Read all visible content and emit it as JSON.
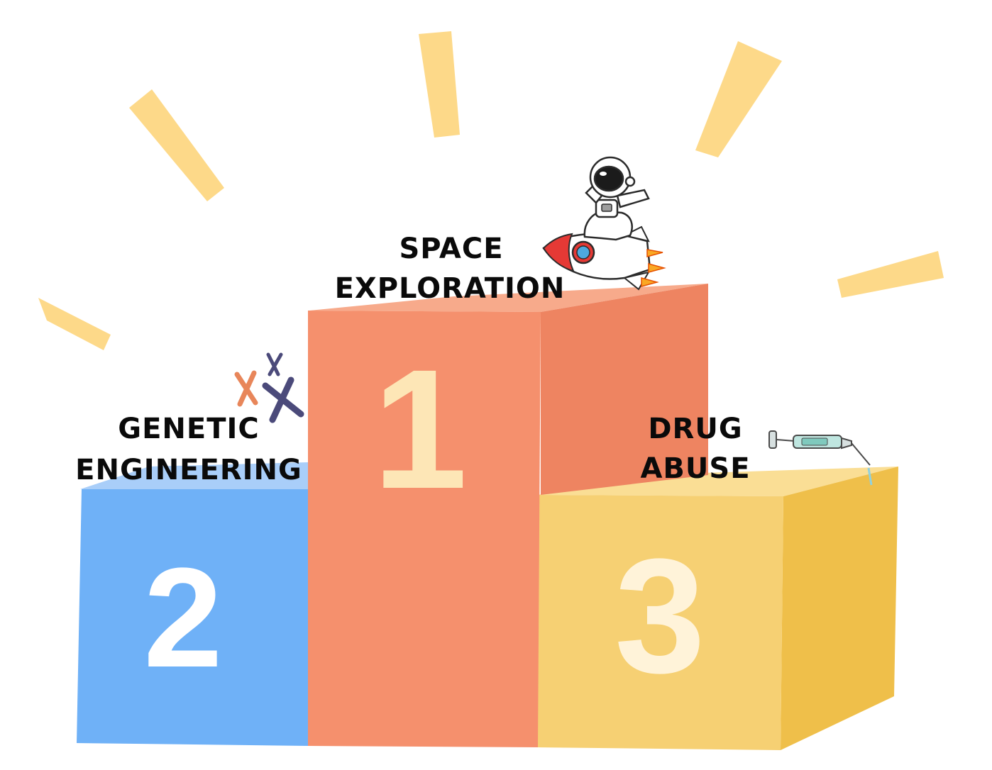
{
  "podium": [
    {
      "place": "1",
      "line1": "SPACE",
      "line2": "EXPLORATION",
      "color": "#F5906D",
      "icon": "astronaut-on-rocket-icon"
    },
    {
      "place": "2",
      "line1": "GENETIC",
      "line2": "ENGINEERING",
      "color": "#6FB1F7",
      "icon": "chromosomes-icon"
    },
    {
      "place": "3",
      "line1": "DRUG",
      "line2": "ABUSE",
      "color": "#F6D073",
      "icon": "syringe-icon"
    }
  ],
  "colors": {
    "burst": "#FDD989",
    "first_front": "#F5906D",
    "first_side": "#EE8461",
    "first_top": "#F7AA8B",
    "second_front": "#6FB1F7",
    "second_top": "#A9CEF9",
    "third_front": "#F6D073",
    "third_side": "#EFBF4A",
    "third_top": "#FADE95"
  }
}
